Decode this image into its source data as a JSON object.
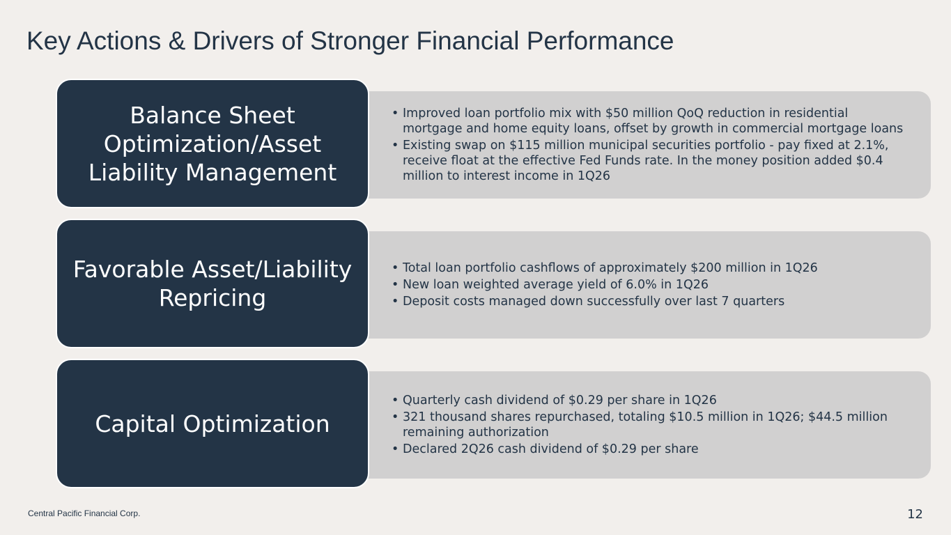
{
  "header": {
    "title": "Key Actions & Drivers of Stronger Financial Performance"
  },
  "sections": [
    {
      "label": "Balance Sheet Optimization/Asset Liability Management",
      "bullets": [
        "Improved loan portfolio mix with $50 million QoQ reduction in residential mortgage and home equity loans, offset by growth in commercial mortgage loans",
        "Existing swap on $115 million municipal securities portfolio - pay fixed at 2.1%, receive float at the effective Fed Funds rate. In the money position added $0.4 million to interest income in 1Q26"
      ]
    },
    {
      "label": "Favorable Asset/Liability Repricing",
      "bullets": [
        "Total loan portfolio cashflows of approximately $200 million in 1Q26",
        "New loan weighted average yield of 6.0% in 1Q26",
        "Deposit costs managed down successfully over last 7 quarters"
      ]
    },
    {
      "label": "Capital Optimization",
      "bullets": [
        "Quarterly cash dividend of $0.29 per share in 1Q26",
        "321 thousand shares repurchased, totaling $10.5 million in 1Q26; $44.5 million remaining authorization",
        "Declared 2Q26 cash dividend of $0.29 per share"
      ]
    }
  ],
  "footer": {
    "company": "Central Pacific Financial Corp.",
    "page": "12"
  }
}
